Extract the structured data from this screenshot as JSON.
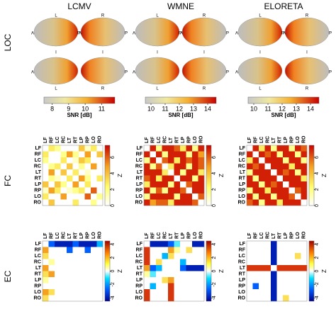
{
  "titles": [
    "LCMV",
    "WMNE",
    "ELORETA"
  ],
  "row_labels": [
    "LOC",
    "FC",
    "EC"
  ],
  "brain_labels": [
    "L",
    "R",
    "A",
    "P",
    "I"
  ],
  "loc": [
    {
      "cbar_lim": [
        7.5,
        11.8
      ],
      "cbar_ticks": [
        8,
        9,
        10,
        11
      ],
      "cbar_label": "SNR [dB]"
    },
    {
      "cbar_lim": [
        9.6,
        14.6
      ],
      "cbar_ticks": [
        10,
        11,
        12,
        13,
        14
      ],
      "cbar_label": "SNR [dB]"
    },
    {
      "cbar_lim": [
        9.6,
        14.6
      ],
      "cbar_ticks": [
        10,
        11,
        12,
        13,
        14
      ],
      "cbar_label": "SNR [dB]"
    }
  ],
  "regions": [
    "LF",
    "RF",
    "LC",
    "RC",
    "LT",
    "RT",
    "LP",
    "RP",
    "LO",
    "RO"
  ],
  "fc": [
    {
      "lim": [
        0,
        7.5
      ],
      "ticks": [
        0,
        2,
        4,
        6
      ],
      "label": "Z",
      "values": [
        [
          0,
          3,
          2,
          0,
          0,
          0,
          4,
          1,
          3,
          0
        ],
        [
          3,
          0,
          0,
          2,
          5,
          2,
          0,
          5,
          0,
          4
        ],
        [
          2,
          0,
          0,
          3,
          0,
          1,
          4,
          3,
          0,
          0
        ],
        [
          0,
          2,
          3,
          0,
          4,
          0,
          2,
          0,
          5,
          0
        ],
        [
          0,
          5,
          0,
          4,
          0,
          3,
          0,
          1,
          0,
          0
        ],
        [
          0,
          2,
          1,
          0,
          3,
          0,
          5,
          2,
          0,
          3
        ],
        [
          4,
          0,
          4,
          2,
          0,
          5,
          0,
          3,
          0,
          0
        ],
        [
          1,
          5,
          3,
          0,
          1,
          2,
          3,
          0,
          6,
          0
        ],
        [
          3,
          0,
          0,
          5,
          0,
          0,
          0,
          6,
          0,
          2
        ],
        [
          0,
          4,
          0,
          0,
          0,
          3,
          0,
          0,
          2,
          0
        ]
      ]
    },
    {
      "lim": [
        0,
        7.5
      ],
      "ticks": [
        0,
        2,
        4,
        6
      ],
      "label": "Z",
      "values": [
        [
          0,
          7,
          2,
          7,
          7,
          6,
          3,
          7,
          2,
          7
        ],
        [
          7,
          0,
          7,
          2,
          7,
          7,
          7,
          2,
          7,
          5
        ],
        [
          2,
          7,
          0,
          6,
          7,
          3,
          7,
          6,
          7,
          6
        ],
        [
          7,
          2,
          6,
          0,
          3,
          7,
          7,
          2,
          7,
          6
        ],
        [
          7,
          7,
          7,
          3,
          0,
          7,
          2,
          7,
          7,
          3
        ],
        [
          6,
          7,
          3,
          7,
          7,
          0,
          7,
          7,
          2,
          7
        ],
        [
          3,
          7,
          7,
          7,
          2,
          7,
          0,
          6,
          7,
          7
        ],
        [
          7,
          2,
          6,
          2,
          7,
          7,
          6,
          0,
          7,
          7
        ],
        [
          2,
          7,
          7,
          7,
          7,
          2,
          7,
          7,
          0,
          6
        ],
        [
          7,
          5,
          6,
          6,
          3,
          7,
          7,
          7,
          6,
          0
        ]
      ]
    },
    {
      "lim": [
        0,
        7.5
      ],
      "ticks": [
        0,
        2,
        4,
        6
      ],
      "label": "Z",
      "values": [
        [
          0,
          7,
          3,
          7,
          2,
          7,
          7,
          2,
          7,
          6
        ],
        [
          7,
          0,
          7,
          6,
          7,
          2,
          7,
          7,
          2,
          7
        ],
        [
          3,
          7,
          0,
          7,
          7,
          7,
          2,
          7,
          7,
          2
        ],
        [
          7,
          6,
          7,
          0,
          7,
          7,
          7,
          3,
          7,
          7
        ],
        [
          2,
          7,
          7,
          7,
          0,
          7,
          6,
          7,
          2,
          7
        ],
        [
          7,
          2,
          7,
          7,
          7,
          0,
          7,
          7,
          7,
          3
        ],
        [
          7,
          7,
          2,
          7,
          6,
          7,
          0,
          7,
          7,
          7
        ],
        [
          2,
          7,
          7,
          3,
          7,
          7,
          7,
          0,
          6,
          7
        ],
        [
          7,
          2,
          7,
          7,
          2,
          7,
          7,
          6,
          0,
          7
        ],
        [
          6,
          7,
          2,
          7,
          7,
          3,
          7,
          7,
          7,
          0
        ]
      ]
    }
  ],
  "ec": [
    {
      "lim": [
        -4.5,
        4.5
      ],
      "ticks": [
        -4,
        -2,
        0,
        2,
        4
      ],
      "label": "Z",
      "values": [
        [
          0,
          -3,
          -4,
          -4,
          -4,
          -3,
          -4,
          -4,
          -4,
          -2
        ],
        [
          3,
          0,
          0,
          0,
          -3,
          0,
          0,
          -3,
          0,
          0
        ],
        [
          2,
          0,
          0,
          0,
          0,
          0,
          0,
          0,
          0,
          0
        ],
        [
          0,
          1,
          0,
          0,
          0,
          0,
          0,
          0,
          0,
          0
        ],
        [
          3,
          0,
          0,
          0,
          0,
          0,
          0,
          0,
          0,
          0
        ],
        [
          2,
          3,
          0,
          0,
          0,
          0,
          0,
          0,
          0,
          0
        ],
        [
          1,
          0,
          0,
          0,
          0,
          0,
          0,
          0,
          0,
          0
        ],
        [
          0,
          0,
          0,
          0,
          0,
          0,
          0,
          0,
          0,
          0
        ],
        [
          3,
          2,
          0,
          0,
          0,
          0,
          0,
          0,
          0,
          0
        ],
        [
          2,
          0,
          0,
          0,
          0,
          0,
          0,
          0,
          0,
          0
        ]
      ]
    },
    {
      "lim": [
        -4.5,
        4.5
      ],
      "ticks": [
        -4,
        -2,
        0,
        2,
        4
      ],
      "label": "Z",
      "values": [
        [
          0,
          -4,
          -4,
          -4,
          -3,
          -1,
          0,
          0,
          -4,
          -4
        ],
        [
          4,
          0,
          0,
          0,
          3,
          1,
          0,
          2,
          0,
          0
        ],
        [
          4,
          0,
          0,
          -2,
          2,
          0,
          0,
          0,
          0,
          0
        ],
        [
          4,
          0,
          2,
          0,
          0,
          0,
          -2,
          0,
          0,
          0
        ],
        [
          3,
          -3,
          -2,
          0,
          0,
          0,
          -3,
          -4,
          -4,
          -4
        ],
        [
          1,
          -1,
          0,
          0,
          0,
          0,
          0,
          0,
          0,
          0
        ],
        [
          0,
          0,
          0,
          2,
          3,
          0,
          0,
          0,
          0,
          0
        ],
        [
          0,
          -2,
          0,
          0,
          4,
          0,
          0,
          0,
          0,
          0
        ],
        [
          4,
          0,
          0,
          0,
          4,
          0,
          0,
          0,
          0,
          0
        ],
        [
          4,
          0,
          0,
          0,
          4,
          0,
          0,
          0,
          0,
          0
        ]
      ]
    },
    {
      "lim": [
        -4.5,
        4.5
      ],
      "ticks": [
        -4,
        -2,
        0,
        2,
        4
      ],
      "label": "Z",
      "values": [
        [
          0,
          0,
          0,
          0,
          -4,
          0,
          0,
          0,
          0,
          0
        ],
        [
          0,
          0,
          0,
          0,
          -4,
          0,
          0,
          0,
          0,
          0
        ],
        [
          0,
          0,
          0,
          0,
          -4,
          0,
          0,
          0,
          2,
          0
        ],
        [
          0,
          0,
          0,
          0,
          -4,
          0,
          0,
          0,
          0,
          0
        ],
        [
          4,
          4,
          4,
          4,
          0,
          4,
          4,
          4,
          4,
          4
        ],
        [
          0,
          0,
          0,
          0,
          -4,
          0,
          0,
          0,
          0,
          0
        ],
        [
          0,
          0,
          0,
          0,
          -4,
          0,
          0,
          0,
          0,
          0
        ],
        [
          0,
          -3,
          0,
          0,
          -4,
          0,
          0,
          0,
          0,
          0
        ],
        [
          0,
          0,
          0,
          0,
          -4,
          0,
          0,
          0,
          0,
          0
        ],
        [
          0,
          0,
          0,
          0,
          -4,
          0,
          2,
          0,
          0,
          0
        ]
      ]
    }
  ]
}
